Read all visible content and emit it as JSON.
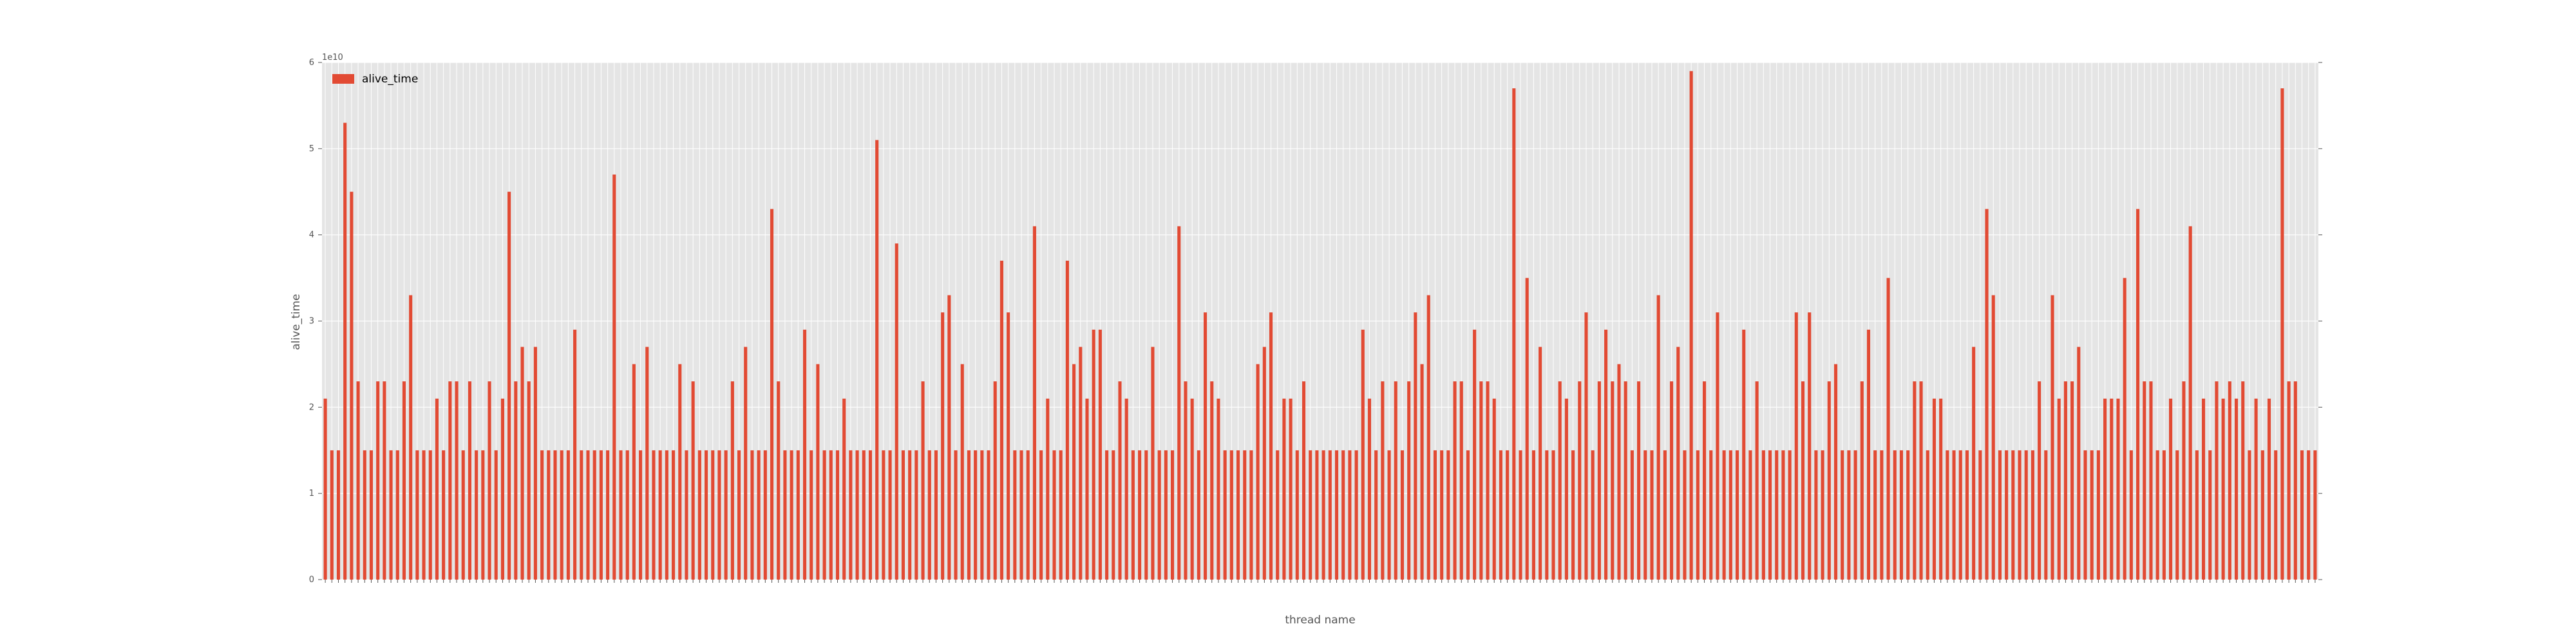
{
  "chart_data": {
    "type": "bar",
    "xlabel": "thread name",
    "ylabel": "alive_time",
    "exponent_label": "1e10",
    "ylim": [
      0,
      6
    ],
    "y_scale_factor": 10000000000,
    "yticks": [
      "0",
      "1",
      "2",
      "3",
      "4",
      "5",
      "6"
    ],
    "legend": {
      "position": "top-left"
    },
    "grid": true,
    "bar_color": "#E24A33",
    "background_color": "#E5E5E5",
    "series": [
      {
        "name": "alive_time",
        "values": [
          2.1,
          1.5,
          1.5,
          5.3,
          4.5,
          2.3,
          1.5,
          1.5,
          2.3,
          2.3,
          1.5,
          1.5,
          2.3,
          3.3,
          1.5,
          1.5,
          1.5,
          2.1,
          1.5,
          2.3,
          2.3,
          1.5,
          2.3,
          1.5,
          1.5,
          2.3,
          1.5,
          2.1,
          4.5,
          2.3,
          2.7,
          2.3,
          2.7,
          1.5,
          1.5,
          1.5,
          1.5,
          1.5,
          2.9,
          1.5,
          1.5,
          1.5,
          1.5,
          1.5,
          4.7,
          1.5,
          1.5,
          2.5,
          1.5,
          2.7,
          1.5,
          1.5,
          1.5,
          1.5,
          2.5,
          1.5,
          2.3,
          1.5,
          1.5,
          1.5,
          1.5,
          1.5,
          2.3,
          1.5,
          2.7,
          1.5,
          1.5,
          1.5,
          4.3,
          2.3,
          1.5,
          1.5,
          1.5,
          2.9,
          1.5,
          2.5,
          1.5,
          1.5,
          1.5,
          2.1,
          1.5,
          1.5,
          1.5,
          1.5,
          5.1,
          1.5,
          1.5,
          3.9,
          1.5,
          1.5,
          1.5,
          2.3,
          1.5,
          1.5,
          3.1,
          3.3,
          1.5,
          2.5,
          1.5,
          1.5,
          1.5,
          1.5,
          2.3,
          3.7,
          3.1,
          1.5,
          1.5,
          1.5,
          4.1,
          1.5,
          2.1,
          1.5,
          1.5,
          3.7,
          2.5,
          2.7,
          2.1,
          2.9,
          2.9,
          1.5,
          1.5,
          2.3,
          2.1,
          1.5,
          1.5,
          1.5,
          2.7,
          1.5,
          1.5,
          1.5,
          4.1,
          2.3,
          2.1,
          1.5,
          3.1,
          2.3,
          2.1,
          1.5,
          1.5,
          1.5,
          1.5,
          1.5,
          2.5,
          2.7,
          3.1,
          1.5,
          2.1,
          2.1,
          1.5,
          2.3,
          1.5,
          1.5,
          1.5,
          1.5,
          1.5,
          1.5,
          1.5,
          1.5,
          2.9,
          2.1,
          1.5,
          2.3,
          1.5,
          2.3,
          1.5,
          2.3,
          3.1,
          2.5,
          3.3,
          1.5,
          1.5,
          1.5,
          2.3,
          2.3,
          1.5,
          2.9,
          2.3,
          2.3,
          2.1,
          1.5,
          1.5,
          5.7,
          1.5,
          3.5,
          1.5,
          2.7,
          1.5,
          1.5,
          2.3,
          2.1,
          1.5,
          2.3,
          3.1,
          1.5,
          2.3,
          2.9,
          2.3,
          2.5,
          2.3,
          1.5,
          2.3,
          1.5,
          1.5,
          3.3,
          1.5,
          2.3,
          2.7,
          1.5,
          5.9,
          1.5,
          2.3,
          1.5,
          3.1,
          1.5,
          1.5,
          1.5,
          2.9,
          1.5,
          2.3,
          1.5,
          1.5,
          1.5,
          1.5,
          1.5,
          3.1,
          2.3,
          3.1,
          1.5,
          1.5,
          2.3,
          2.5,
          1.5,
          1.5,
          1.5,
          2.3,
          2.9,
          1.5,
          1.5,
          3.5,
          1.5,
          1.5,
          1.5,
          2.3,
          2.3,
          1.5,
          2.1,
          2.1,
          1.5,
          1.5,
          1.5,
          1.5,
          2.7,
          1.5,
          4.3,
          3.3,
          1.5,
          1.5,
          1.5,
          1.5,
          1.5,
          1.5,
          2.3,
          1.5,
          3.3,
          2.1,
          2.3,
          2.3,
          2.7,
          1.5,
          1.5,
          1.5,
          2.1,
          2.1,
          2.1,
          3.5,
          1.5,
          4.3,
          2.3,
          2.3,
          1.5,
          1.5,
          2.1,
          1.5,
          2.3,
          4.1,
          1.5,
          2.1,
          1.5,
          2.3,
          2.1,
          2.3,
          2.1,
          2.3,
          1.5,
          2.1,
          1.5,
          2.1,
          1.5,
          5.7,
          2.3,
          2.3,
          1.5,
          1.5,
          1.5
        ]
      }
    ]
  }
}
